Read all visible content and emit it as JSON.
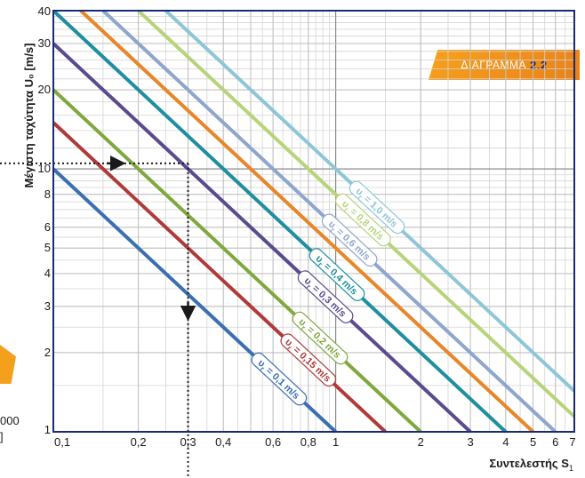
{
  "badge": {
    "text": "ΔΙΑΓΡΑΜΜΑ",
    "number": "2.2"
  },
  "left_fragments": {
    "line1": "000",
    "line2": "]"
  },
  "chart_data": {
    "type": "line",
    "xscale": "log",
    "yscale": "log",
    "xlim": [
      0.1,
      7
    ],
    "ylim": [
      1,
      40
    ],
    "xlabel": "Συντελεστής S",
    "xlabel_subscript": "1",
    "ylabel": "Μέγιστη ταχύτητα U₀ [m/s]",
    "xticks": [
      {
        "v": 0.1,
        "t": "0,1"
      },
      {
        "v": 0.2,
        "t": "0,2"
      },
      {
        "v": 0.3,
        "t": "0,3"
      },
      {
        "v": 0.4,
        "t": "0,4"
      },
      {
        "v": 0.6,
        "t": "0,6"
      },
      {
        "v": 0.8,
        "t": "0,8"
      },
      {
        "v": 1,
        "t": "1"
      },
      {
        "v": 2,
        "t": "2"
      },
      {
        "v": 3,
        "t": "3"
      },
      {
        "v": 4,
        "t": "4"
      },
      {
        "v": 5,
        "t": "5"
      },
      {
        "v": 6,
        "t": "6"
      },
      {
        "v": 7,
        "t": "7"
      }
    ],
    "yticks": [
      {
        "v": 1,
        "t": "1"
      },
      {
        "v": 2,
        "t": "2"
      },
      {
        "v": 3,
        "t": "3"
      },
      {
        "v": 4,
        "t": "4"
      },
      {
        "v": 5,
        "t": "5"
      },
      {
        "v": 6,
        "t": "6"
      },
      {
        "v": 8,
        "t": "8"
      },
      {
        "v": 10,
        "t": "10"
      },
      {
        "v": 20,
        "t": "20"
      },
      {
        "v": 30,
        "t": "30"
      },
      {
        "v": 40,
        "t": "40"
      }
    ],
    "grid": true,
    "series": [
      {
        "name": "υ = 0,1 m/s",
        "label_sub": "r",
        "color": "#3a6fb0",
        "x": [
          0.1,
          1
        ],
        "y": [
          10,
          1
        ]
      },
      {
        "name": "υ = 0,15 m/s",
        "label_sub": "r",
        "color": "#b03a3a",
        "x": [
          0.1,
          1.5
        ],
        "y": [
          15,
          1
        ]
      },
      {
        "name": "υ = 0,2 m/s",
        "label_sub": "r",
        "color": "#7fa83e",
        "x": [
          0.1,
          2
        ],
        "y": [
          20,
          1
        ]
      },
      {
        "name": "υ = 0,3 m/s",
        "label_sub": "r",
        "color": "#5b4a8e",
        "x": [
          0.1,
          3
        ],
        "y": [
          30,
          1
        ]
      },
      {
        "name": "υ = 0,4 m/s",
        "label_sub": "r",
        "color": "#1f8fa0",
        "x": [
          0.1,
          4
        ],
        "y": [
          40,
          1
        ]
      },
      {
        "name": "",
        "color": "#e8862a",
        "x": [
          0.125,
          5
        ],
        "y": [
          40,
          1
        ]
      },
      {
        "name": "υ = 0,6 m/s",
        "label_sub": "r",
        "color": "#8fa6cc",
        "x": [
          0.15,
          6
        ],
        "y": [
          40,
          1
        ]
      },
      {
        "name": "υ = 0,8 m/s",
        "label_sub": "r",
        "color": "#b8d37a",
        "x": [
          0.2,
          7
        ],
        "y": [
          40,
          1.143
        ]
      },
      {
        "name": "υ = 1,0 m/s",
        "label_sub": "r",
        "color": "#8ec6d8",
        "x": [
          0.25,
          7
        ],
        "y": [
          40,
          1.429
        ]
      }
    ],
    "annotation": {
      "type": "dotted-arrow",
      "x": 0.3,
      "y": 10.5,
      "color": "#1a1a1a"
    }
  }
}
